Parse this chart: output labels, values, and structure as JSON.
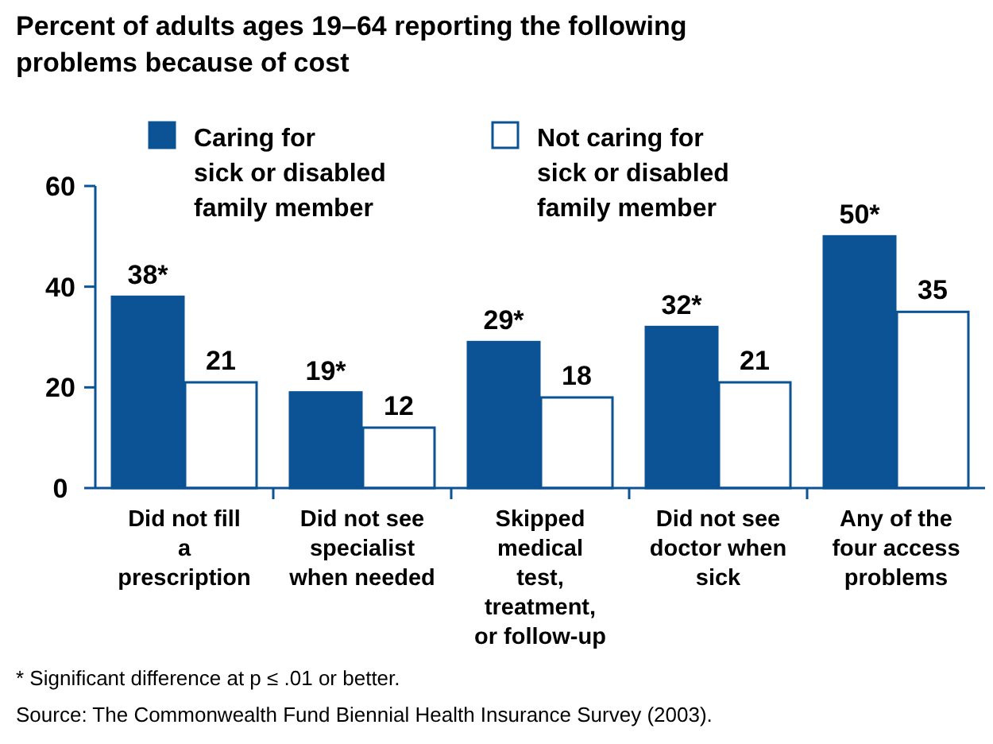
{
  "chart_data": {
    "type": "bar",
    "title": "Percent of adults ages 19–64 reporting the following problems because of cost",
    "categories": [
      "Did not fill a prescription",
      "Did not see specialist when needed",
      "Skipped medical test, treatment, or follow-up",
      "Did not see doctor when sick",
      "Any of the four access problems"
    ],
    "series": [
      {
        "name": "Caring for sick or disabled family member",
        "color": "#0b5394",
        "values": [
          38,
          19,
          29,
          32,
          50
        ],
        "value_labels": [
          "38*",
          "19*",
          "29*",
          "32*",
          "50*"
        ]
      },
      {
        "name": "Not caring for sick or disabled family member",
        "color": "#ffffff",
        "values": [
          21,
          12,
          18,
          21,
          35
        ],
        "value_labels": [
          "21",
          "12",
          "18",
          "21",
          "35"
        ]
      }
    ],
    "ylim": [
      0,
      60
    ],
    "yticks": [
      0,
      20,
      40,
      60
    ],
    "grid": false,
    "legend": "top",
    "annotations": [
      "* Significant difference at p ≤ .01 or better.",
      "Source: The Commonwealth Fund Biennial Health Insurance Survey (2003)."
    ]
  }
}
